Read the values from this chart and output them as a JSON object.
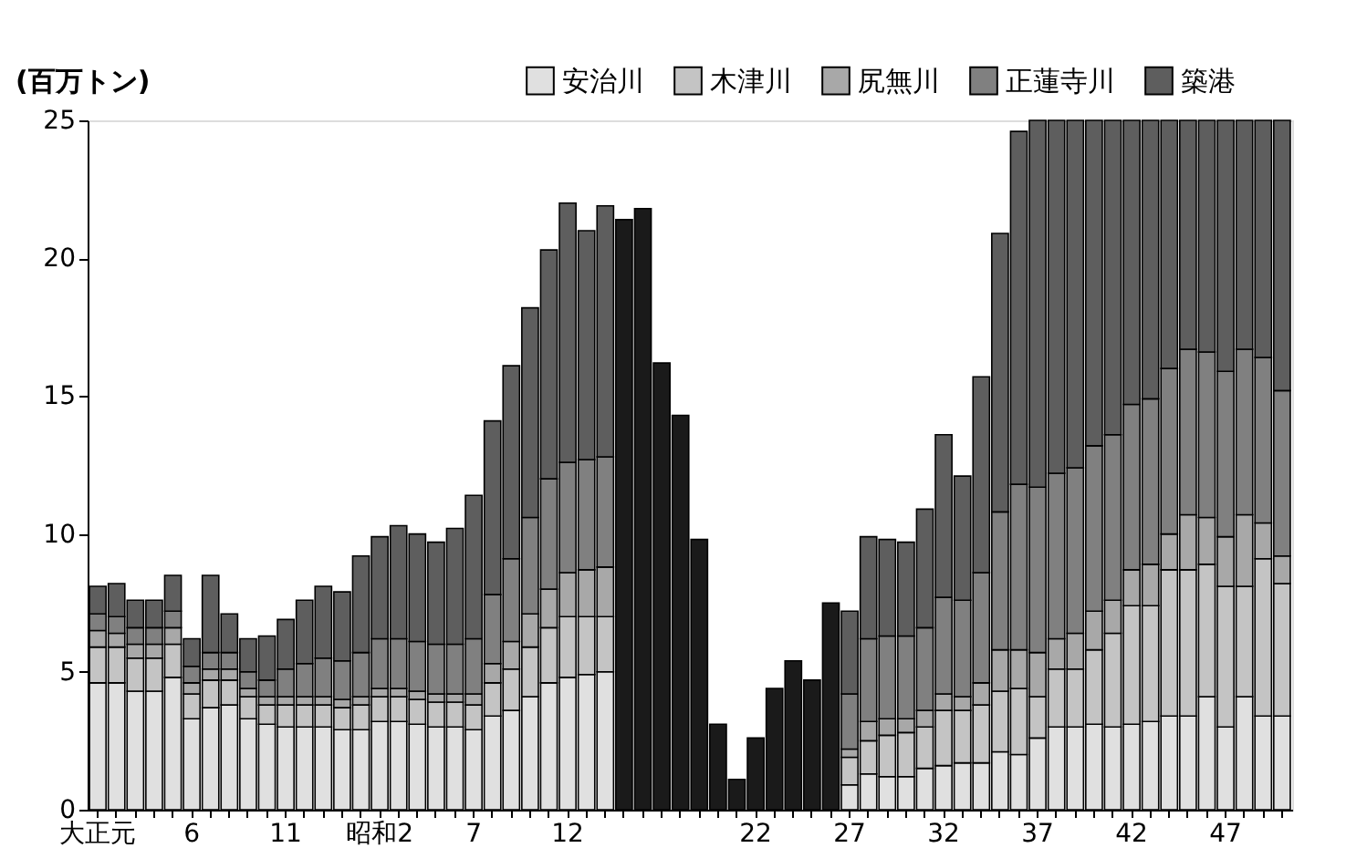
{
  "chart_data": {
    "type": "bar",
    "stacked": true,
    "ylabel": "(百万トン)",
    "categories": [
      "大正元",
      null,
      null,
      null,
      null,
      "6",
      null,
      null,
      null,
      null,
      "11",
      null,
      null,
      null,
      null,
      "昭和2",
      null,
      null,
      null,
      null,
      "7",
      null,
      null,
      null,
      null,
      "12",
      null,
      null,
      null,
      null,
      null,
      null,
      null,
      null,
      null,
      "22",
      null,
      null,
      null,
      null,
      "27",
      null,
      null,
      null,
      null,
      "32",
      null,
      null,
      null,
      null,
      "37",
      null,
      null,
      null,
      null,
      "42",
      null,
      null,
      null,
      null,
      "47",
      null,
      null,
      null
    ],
    "series": [
      {
        "name": "安治川",
        "color": "#e0e0e0",
        "values": [
          4.6,
          4.6,
          4.3,
          4.3,
          4.8,
          3.3,
          3.7,
          3.8,
          3.3,
          3.1,
          3.0,
          3.0,
          3.0,
          2.9,
          2.9,
          3.2,
          3.2,
          3.1,
          3.0,
          3.0,
          2.9,
          3.4,
          3.6,
          4.1,
          4.6,
          4.8,
          4.9,
          5.0,
          null,
          null,
          null,
          null,
          null,
          null,
          null,
          null,
          null,
          null,
          null,
          null,
          0.9,
          1.3,
          1.2,
          1.2,
          1.5,
          1.6,
          1.7,
          1.7,
          2.1,
          2.0,
          2.6,
          3.0,
          3.0,
          3.1,
          3.0,
          3.1,
          3.2,
          3.4,
          3.4,
          4.1,
          3.0,
          4.1,
          3.4,
          3.4
        ]
      },
      {
        "name": "木津川",
        "color": "#c4c4c4",
        "values": [
          1.3,
          1.3,
          1.2,
          1.2,
          1.2,
          0.9,
          1.0,
          0.9,
          0.8,
          0.7,
          0.8,
          0.8,
          0.8,
          0.8,
          0.9,
          0.9,
          0.9,
          0.9,
          0.9,
          0.9,
          0.9,
          1.2,
          1.5,
          1.8,
          2.0,
          2.2,
          2.1,
          2.0,
          null,
          null,
          null,
          null,
          null,
          null,
          null,
          null,
          null,
          null,
          null,
          null,
          1.0,
          1.2,
          1.5,
          1.6,
          1.5,
          2.0,
          1.9,
          2.1,
          2.2,
          2.4,
          1.5,
          2.1,
          2.1,
          2.7,
          3.4,
          4.3,
          4.2,
          5.3,
          5.3,
          4.8,
          5.1,
          4.0,
          5.7,
          4.8
        ]
      },
      {
        "name": "尻無川",
        "color": "#a8a8a8",
        "values": [
          0.6,
          0.5,
          0.5,
          0.5,
          0.6,
          0.4,
          0.4,
          0.4,
          0.3,
          0.3,
          0.3,
          0.3,
          0.3,
          0.3,
          0.3,
          0.3,
          0.3,
          0.3,
          0.3,
          0.3,
          0.4,
          0.7,
          1.0,
          1.2,
          1.4,
          1.6,
          1.7,
          1.8,
          null,
          null,
          null,
          null,
          null,
          null,
          null,
          null,
          null,
          null,
          null,
          null,
          0.3,
          0.7,
          0.6,
          0.5,
          0.6,
          0.6,
          0.5,
          0.8,
          1.5,
          1.4,
          1.6,
          1.1,
          1.3,
          1.4,
          1.2,
          1.3,
          1.5,
          1.3,
          2.0,
          1.7,
          1.8,
          2.6,
          1.3,
          1.0
        ]
      },
      {
        "name": "正蓮寺川",
        "color": "#808080",
        "values": [
          0.6,
          0.6,
          0.6,
          0.6,
          0.6,
          0.6,
          0.6,
          0.6,
          0.6,
          0.6,
          1.0,
          1.2,
          1.4,
          1.4,
          1.6,
          1.8,
          1.8,
          1.8,
          1.8,
          1.8,
          2.0,
          2.5,
          3.0,
          3.5,
          4.0,
          4.0,
          4.0,
          4.0,
          null,
          null,
          null,
          null,
          null,
          null,
          null,
          null,
          null,
          null,
          null,
          null,
          2.0,
          3.0,
          3.0,
          3.0,
          3.0,
          3.5,
          3.5,
          4.0,
          5.0,
          6.0,
          6.0,
          6.0,
          6.0,
          6.0,
          6.0,
          6.0,
          6.0,
          6.0,
          6.0,
          6.0,
          6.0,
          6.0,
          6.0,
          6.0
        ]
      },
      {
        "name": "築港",
        "color": "#5e5e5e",
        "values": [
          1.0,
          1.2,
          1.0,
          1.0,
          1.3,
          1.0,
          2.8,
          1.4,
          1.2,
          1.6,
          1.8,
          2.3,
          2.6,
          2.5,
          3.5,
          3.7,
          4.1,
          3.9,
          3.7,
          4.2,
          5.2,
          6.3,
          7.0,
          7.6,
          8.3,
          9.4,
          8.3,
          9.1,
          null,
          null,
          null,
          null,
          null,
          null,
          null,
          null,
          null,
          null,
          null,
          null,
          3.0,
          3.7,
          3.5,
          3.4,
          4.3,
          5.9,
          4.5,
          7.1,
          10.1,
          12.8,
          13.3,
          12.8,
          12.6,
          11.8,
          11.4,
          10.3,
          10.1,
          9.0,
          8.3,
          8.4,
          9.1,
          8.3,
          8.6,
          9.8
        ]
      },
      {
        "color": "#1a1a1a",
        "values": [
          null,
          null,
          null,
          null,
          null,
          null,
          null,
          null,
          null,
          null,
          null,
          null,
          null,
          null,
          null,
          null,
          null,
          null,
          null,
          null,
          null,
          null,
          null,
          null,
          null,
          null,
          null,
          null,
          21.4,
          21.8,
          16.2,
          14.3,
          9.8,
          3.1,
          1.1,
          2.6,
          4.4,
          5.4,
          4.7,
          7.5,
          null,
          null,
          null,
          null,
          null,
          null,
          null,
          null,
          null,
          null,
          null,
          null,
          null,
          null,
          null,
          null,
          null,
          null,
          null,
          null,
          null,
          null,
          null,
          null
        ]
      }
    ],
    "ylim": [
      0,
      25
    ],
    "yticks": [
      0,
      5,
      10,
      15,
      20,
      25
    ],
    "grid": false,
    "legend": "top right"
  }
}
